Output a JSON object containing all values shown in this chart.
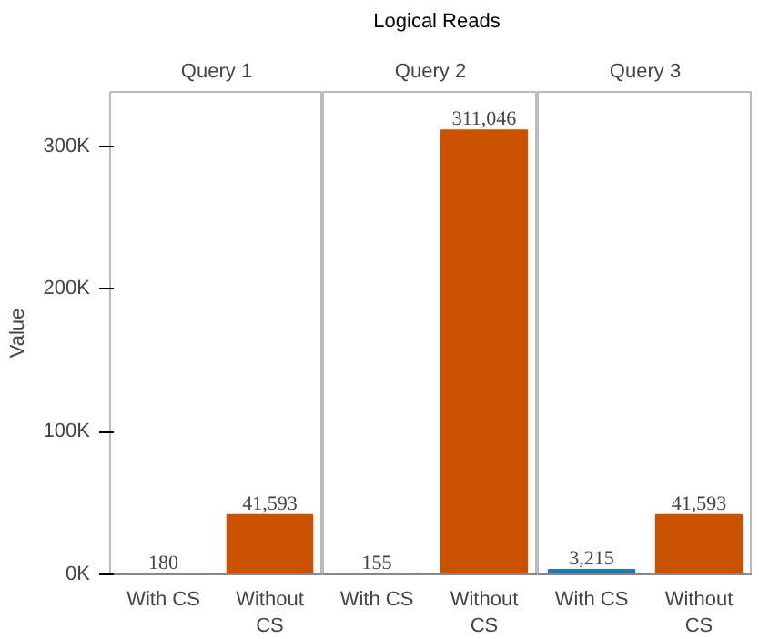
{
  "chart_data": [
    {
      "type": "bar",
      "title": "Query 1",
      "annotations": [
        "Logical Reads"
      ],
      "ylabel": "Value",
      "categories": [
        "With CS",
        "Without CS"
      ],
      "values": [
        180,
        41593
      ],
      "colors": [
        "#1f77b4",
        "#c85200"
      ],
      "value_labels": [
        "180",
        "41,593"
      ],
      "ylim": [
        0,
        338000
      ],
      "yticks": [
        {
          "value": 0,
          "label": "0K"
        },
        {
          "value": 100000,
          "label": "100K"
        },
        {
          "value": 200000,
          "label": "200K"
        },
        {
          "value": 300000,
          "label": "300K"
        }
      ]
    },
    {
      "type": "bar",
      "title": "Query 2",
      "categories": [
        "With CS",
        "Without CS"
      ],
      "values": [
        155,
        311046
      ],
      "colors": [
        "#1f77b4",
        "#c85200"
      ],
      "value_labels": [
        "155",
        "311,046"
      ],
      "ylim": [
        0,
        338000
      ],
      "tick_labels": "x"
    },
    {
      "type": "bar",
      "title": "Query 3",
      "categories": [
        "With CS",
        "Without CS"
      ],
      "values": [
        3215,
        41593
      ],
      "colors": [
        "#1f77b4",
        "#c85200"
      ],
      "value_labels": [
        "3,215",
        "41,593"
      ],
      "ylim": [
        0,
        338000
      ],
      "tick_labels": "x"
    }
  ]
}
